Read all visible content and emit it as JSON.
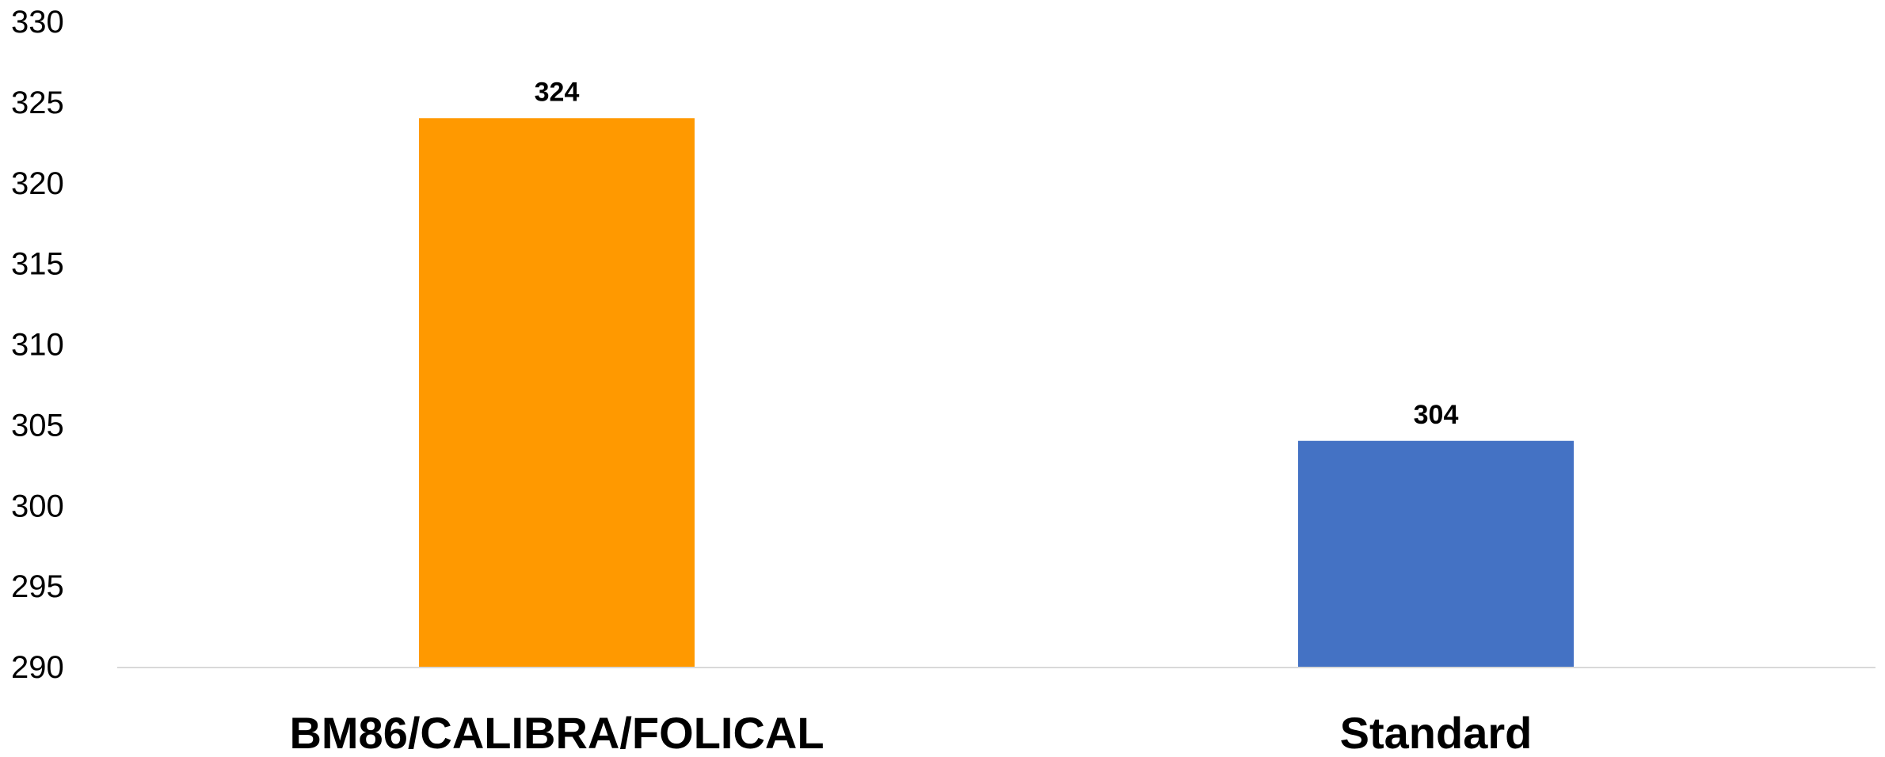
{
  "chart_data": {
    "type": "bar",
    "title": "",
    "xlabel": "",
    "ylabel": "",
    "categories": [
      "BM86/CALIBRA/FOLICAL",
      "Standard"
    ],
    "values": [
      324,
      304
    ],
    "data_labels": [
      "324",
      "304"
    ],
    "colors": [
      "#FF9900",
      "#4472C4"
    ],
    "ylim": [
      290,
      330
    ],
    "yticks": [
      290,
      295,
      300,
      305,
      310,
      315,
      320,
      325,
      330
    ],
    "ytick_labels": [
      "290",
      "295",
      "300",
      "305",
      "310",
      "315",
      "320",
      "325",
      "330"
    ],
    "grid": false,
    "legend": "none",
    "axis_color": "#D9D9D9"
  }
}
